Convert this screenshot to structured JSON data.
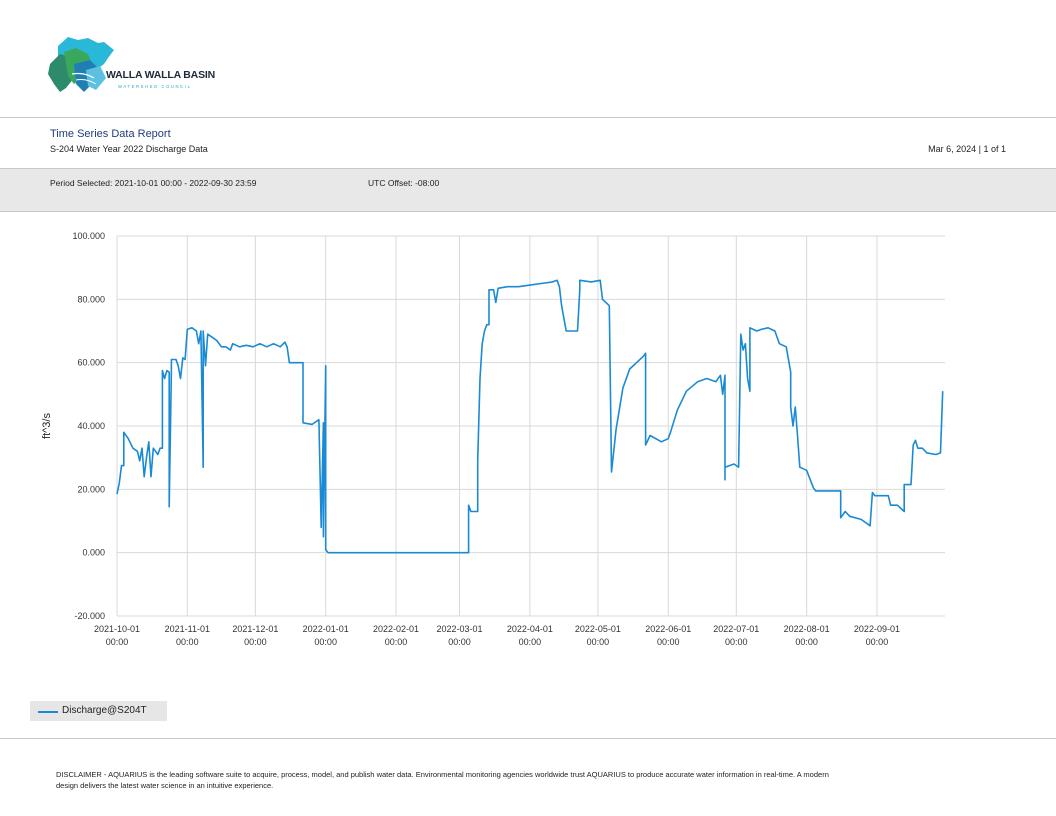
{
  "logo": {
    "name": "WALLA WALLA BASIN",
    "tagline": "WATERSHED COUNCIL"
  },
  "header": {
    "title": "Time Series Data Report",
    "subtitle": "S-204 Water Year 2022 Discharge Data",
    "date_page": "Mar 6, 2024 | 1 of 1"
  },
  "period": {
    "selected": "Period Selected: 2021-10-01 00:00 - 2022-09-30 23:59",
    "utc_offset": "UTC Offset: -08:00"
  },
  "chart_data": {
    "type": "line",
    "ylabel": "ft^3/s",
    "ylim": [
      -20,
      100
    ],
    "yticks": [
      "100.000",
      "80.000",
      "60.000",
      "40.000",
      "20.000",
      "0.000",
      "-20.000"
    ],
    "xlim": [
      "2021-10-01",
      "2022-09-30"
    ],
    "xticks": [
      {
        "date": "2021-10-01",
        "label1": "2021-10-01",
        "label2": "00:00"
      },
      {
        "date": "2021-11-01",
        "label1": "2021-11-01",
        "label2": "00:00"
      },
      {
        "date": "2021-12-01",
        "label1": "2021-12-01",
        "label2": "00:00"
      },
      {
        "date": "2022-01-01",
        "label1": "2022-01-01",
        "label2": "00:00"
      },
      {
        "date": "2022-02-01",
        "label1": "2022-02-01",
        "label2": "00:00"
      },
      {
        "date": "2022-03-01",
        "label1": "2022-03-01",
        "label2": "00:00"
      },
      {
        "date": "2022-04-01",
        "label1": "2022-04-01",
        "label2": "00:00"
      },
      {
        "date": "2022-05-01",
        "label1": "2022-05-01",
        "label2": "00:00"
      },
      {
        "date": "2022-06-01",
        "label1": "2022-06-01",
        "label2": "00:00"
      },
      {
        "date": "2022-07-01",
        "label1": "2022-07-01",
        "label2": "00:00"
      },
      {
        "date": "2022-08-01",
        "label1": "2022-08-01",
        "label2": "00:00"
      },
      {
        "date": "2022-09-01",
        "label1": "2022-09-01",
        "label2": "00:00"
      }
    ],
    "grid": true,
    "legend_position": "bottom-left",
    "series": [
      {
        "name": "Discharge@S204T",
        "color": "#1a8ad4",
        "points": [
          [
            "2021-10-01",
            18.5
          ],
          [
            "2021-10-02",
            22
          ],
          [
            "2021-10-03",
            27.5
          ],
          [
            "2021-10-04",
            27.5
          ],
          [
            "2021-10-04",
            38
          ],
          [
            "2021-10-06",
            36
          ],
          [
            "2021-10-08",
            33
          ],
          [
            "2021-10-10",
            32
          ],
          [
            "2021-10-11",
            29
          ],
          [
            "2021-10-12",
            33
          ],
          [
            "2021-10-13",
            24
          ],
          [
            "2021-10-14",
            30
          ],
          [
            "2021-10-15",
            35
          ],
          [
            "2021-10-16",
            24
          ],
          [
            "2021-10-17",
            33
          ],
          [
            "2021-10-18",
            32
          ],
          [
            "2021-10-19",
            31
          ],
          [
            "2021-10-20",
            33
          ],
          [
            "2021-10-21",
            33
          ],
          [
            "2021-10-21",
            57.5
          ],
          [
            "2021-10-22",
            55
          ],
          [
            "2021-10-23",
            57.5
          ],
          [
            "2021-10-24",
            57
          ],
          [
            "2021-10-24",
            14.5
          ],
          [
            "2021-10-25",
            58
          ],
          [
            "2021-10-25",
            61
          ],
          [
            "2021-10-27",
            61
          ],
          [
            "2021-10-28",
            59
          ],
          [
            "2021-10-29",
            55
          ],
          [
            "2021-10-30",
            61.5
          ],
          [
            "2021-10-31",
            61
          ],
          [
            "2021-11-01",
            70.5
          ],
          [
            "2021-11-03",
            71
          ],
          [
            "2021-11-05",
            70
          ],
          [
            "2021-11-06",
            66
          ],
          [
            "2021-11-07",
            70
          ],
          [
            "2021-11-08",
            27
          ],
          [
            "2021-11-08",
            70
          ],
          [
            "2021-11-09",
            59
          ],
          [
            "2021-11-10",
            69
          ],
          [
            "2021-11-12",
            68
          ],
          [
            "2021-11-14",
            67
          ],
          [
            "2021-11-16",
            65
          ],
          [
            "2021-11-18",
            65
          ],
          [
            "2021-11-20",
            64
          ],
          [
            "2021-11-21",
            66
          ],
          [
            "2021-11-24",
            65
          ],
          [
            "2021-11-27",
            65.5
          ],
          [
            "2021-11-30",
            65
          ],
          [
            "2021-12-03",
            66
          ],
          [
            "2021-12-06",
            65
          ],
          [
            "2021-12-09",
            66
          ],
          [
            "2021-12-12",
            65
          ],
          [
            "2021-12-14",
            66.5
          ],
          [
            "2021-12-15",
            65
          ],
          [
            "2021-12-16",
            60
          ],
          [
            "2021-12-22",
            60
          ],
          [
            "2021-12-22",
            41
          ],
          [
            "2021-12-26",
            40.5
          ],
          [
            "2021-12-29",
            42
          ],
          [
            "2021-12-30",
            8
          ],
          [
            "2021-12-31",
            41
          ],
          [
            "2021-12-31",
            5
          ],
          [
            "2022-01-01",
            59
          ],
          [
            "2022-01-01",
            1
          ],
          [
            "2022-01-02",
            0
          ],
          [
            "2022-03-05",
            0
          ],
          [
            "2022-03-05",
            15
          ],
          [
            "2022-03-06",
            13
          ],
          [
            "2022-03-09",
            13
          ],
          [
            "2022-03-09",
            29
          ],
          [
            "2022-03-10",
            55
          ],
          [
            "2022-03-11",
            66
          ],
          [
            "2022-03-12",
            70
          ],
          [
            "2022-03-13",
            72
          ],
          [
            "2022-03-14",
            72
          ],
          [
            "2022-03-14",
            83
          ],
          [
            "2022-03-16",
            83
          ],
          [
            "2022-03-17",
            79
          ],
          [
            "2022-03-18",
            83.5
          ],
          [
            "2022-03-22",
            84
          ],
          [
            "2022-03-27",
            84
          ],
          [
            "2022-04-01",
            84.5
          ],
          [
            "2022-04-06",
            85
          ],
          [
            "2022-04-11",
            85.5
          ],
          [
            "2022-04-13",
            86
          ],
          [
            "2022-04-14",
            84
          ],
          [
            "2022-04-15",
            78
          ],
          [
            "2022-04-17",
            70
          ],
          [
            "2022-04-22",
            70
          ],
          [
            "2022-04-23",
            83
          ],
          [
            "2022-04-23",
            86
          ],
          [
            "2022-04-28",
            85.5
          ],
          [
            "2022-05-02",
            86
          ],
          [
            "2022-05-03",
            80
          ],
          [
            "2022-05-06",
            78
          ],
          [
            "2022-05-07",
            25.5
          ],
          [
            "2022-05-09",
            39
          ],
          [
            "2022-05-12",
            52
          ],
          [
            "2022-05-15",
            58
          ],
          [
            "2022-05-18",
            60
          ],
          [
            "2022-05-21",
            62
          ],
          [
            "2022-05-22",
            63
          ],
          [
            "2022-05-22",
            34
          ],
          [
            "2022-05-24",
            37
          ],
          [
            "2022-05-29",
            35
          ],
          [
            "2022-06-01",
            36
          ],
          [
            "2022-06-02",
            38
          ],
          [
            "2022-06-05",
            45
          ],
          [
            "2022-06-09",
            51
          ],
          [
            "2022-06-14",
            54
          ],
          [
            "2022-06-18",
            55
          ],
          [
            "2022-06-22",
            54
          ],
          [
            "2022-06-24",
            56
          ],
          [
            "2022-06-25",
            50
          ],
          [
            "2022-06-26",
            56
          ],
          [
            "2022-06-26",
            23
          ],
          [
            "2022-06-26",
            27
          ],
          [
            "2022-06-30",
            28
          ],
          [
            "2022-07-01",
            27.5
          ],
          [
            "2022-07-02",
            27
          ],
          [
            "2022-07-03",
            69
          ],
          [
            "2022-07-04",
            64
          ],
          [
            "2022-07-05",
            66
          ],
          [
            "2022-07-06",
            55
          ],
          [
            "2022-07-07",
            51
          ],
          [
            "2022-07-07",
            71
          ],
          [
            "2022-07-10",
            70
          ],
          [
            "2022-07-12",
            70.5
          ],
          [
            "2022-07-15",
            71
          ],
          [
            "2022-07-18",
            70
          ],
          [
            "2022-07-20",
            66
          ],
          [
            "2022-07-23",
            65
          ],
          [
            "2022-07-24",
            61
          ],
          [
            "2022-07-25",
            57
          ],
          [
            "2022-07-25",
            46
          ],
          [
            "2022-07-26",
            40
          ],
          [
            "2022-07-27",
            46
          ],
          [
            "2022-07-28",
            37
          ],
          [
            "2022-07-29",
            27
          ],
          [
            "2022-08-01",
            26
          ],
          [
            "2022-08-04",
            20.5
          ],
          [
            "2022-08-05",
            19.5
          ],
          [
            "2022-08-14",
            19.5
          ],
          [
            "2022-08-16",
            19.5
          ],
          [
            "2022-08-16",
            11
          ],
          [
            "2022-08-18",
            13
          ],
          [
            "2022-08-20",
            11.5
          ],
          [
            "2022-08-25",
            10.5
          ],
          [
            "2022-08-28",
            9
          ],
          [
            "2022-08-29",
            8.5
          ],
          [
            "2022-08-30",
            19
          ],
          [
            "2022-08-31",
            18
          ],
          [
            "2022-09-03",
            18
          ],
          [
            "2022-09-06",
            18
          ],
          [
            "2022-09-07",
            15
          ],
          [
            "2022-09-10",
            15
          ],
          [
            "2022-09-13",
            13
          ],
          [
            "2022-09-13",
            21.5
          ],
          [
            "2022-09-16",
            21.5
          ],
          [
            "2022-09-17",
            34
          ],
          [
            "2022-09-18",
            35.5
          ],
          [
            "2022-09-19",
            33
          ],
          [
            "2022-09-21",
            33
          ],
          [
            "2022-09-23",
            31.5
          ],
          [
            "2022-09-27",
            31
          ],
          [
            "2022-09-29",
            31.5
          ],
          [
            "2022-09-30",
            51
          ]
        ]
      }
    ]
  },
  "legend": {
    "label": "Discharge@S204T"
  },
  "disclaimer": "DISCLAIMER - AQUARIUS is the leading software suite to acquire, process, model, and publish water data. Environmental monitoring agencies worldwide trust AQUARIUS to produce accurate water information in real-time. A modern design delivers the latest water science in an intuitive experience."
}
